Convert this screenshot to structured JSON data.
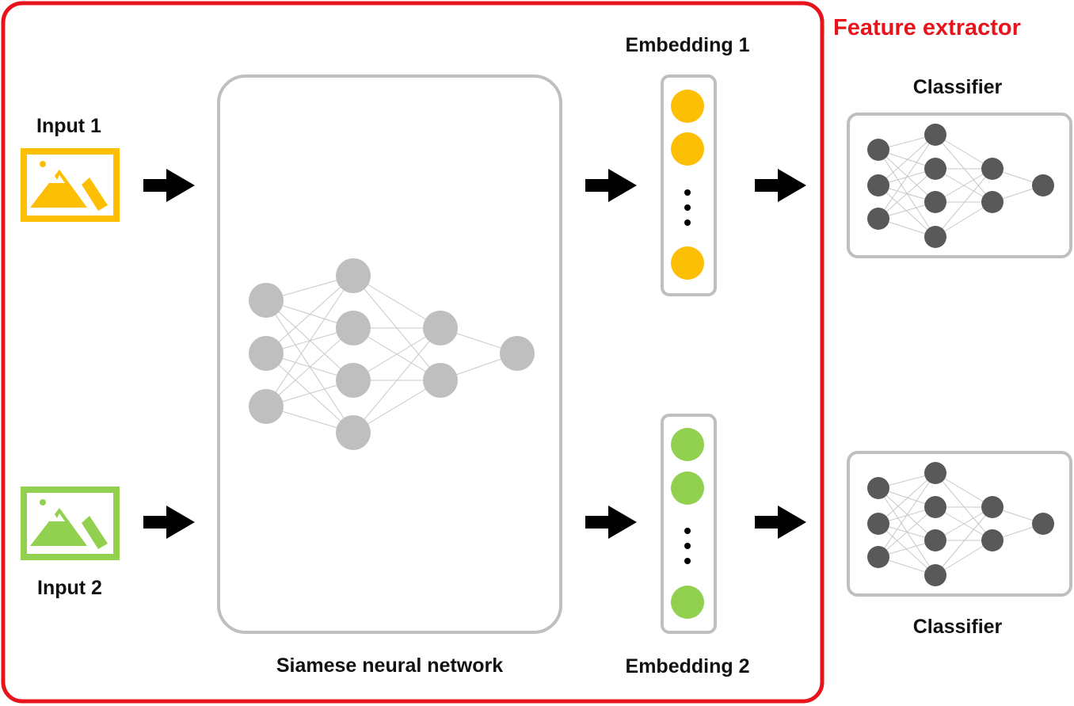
{
  "labels": {
    "input1": "Input 1",
    "input2": "Input 2",
    "siamese": "Siamese neural network",
    "embedding1": "Embedding 1",
    "embedding2": "Embedding 2",
    "classifier_top": "Classifier",
    "classifier_bottom": "Classifier",
    "feature_extractor": "Feature extractor"
  },
  "icons": {
    "input1": "image-icon",
    "input2": "image-icon",
    "arrow": "arrow-right-icon",
    "ellipsis": "vertical-ellipsis-icon"
  },
  "colors": {
    "feature_extractor": "#e8141c",
    "input1": "#fcbf04",
    "input2": "#92d050",
    "siamese_nodes": "#bfbfbf",
    "classifier_nodes": "#595959",
    "panel_border": "#bfbfbf",
    "arrow": "#000000"
  }
}
